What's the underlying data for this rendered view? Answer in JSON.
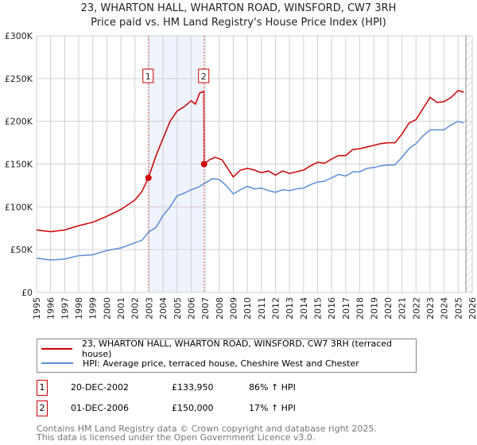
{
  "chart_data": {
    "type": "line",
    "title": "23, WHARTON HALL, WHARTON ROAD, WINSFORD, CW7 3RH",
    "subtitle": "Price paid vs. HM Land Registry's House Price Index (HPI)",
    "xlim": [
      1995,
      2026
    ],
    "ylim": [
      0,
      300000
    ],
    "x_ticks": [
      "1995",
      "1996",
      "1997",
      "1998",
      "1999",
      "2000",
      "2001",
      "2002",
      "2003",
      "2004",
      "2005",
      "2006",
      "2007",
      "2008",
      "2009",
      "2010",
      "2011",
      "2012",
      "2013",
      "2014",
      "2015",
      "2016",
      "2017",
      "2018",
      "2019",
      "2020",
      "2021",
      "2022",
      "2023",
      "2024",
      "2025",
      "2026"
    ],
    "y_ticks": [
      {
        "v": 0,
        "label": "£0"
      },
      {
        "v": 50000,
        "label": "£50K"
      },
      {
        "v": 100000,
        "label": "£100K"
      },
      {
        "v": 150000,
        "label": "£150K"
      },
      {
        "v": 200000,
        "label": "£200K"
      },
      {
        "v": 250000,
        "label": "£250K"
      },
      {
        "v": 300000,
        "label": "£300K"
      }
    ],
    "grid": true,
    "shaded_range": [
      2002.96,
      2006.92
    ],
    "future_hatch_from": 2025.55,
    "series": [
      {
        "name": "23, WHARTON HALL, WHARTON ROAD, WINSFORD, CW7 3RH (terraced house)",
        "color": "#cc0000",
        "x": [
          1995,
          1996,
          1997,
          1998,
          1999,
          2000,
          2001,
          2002,
          2002.5,
          2002.96,
          2003.5,
          2004,
          2004.5,
          2005,
          2005.5,
          2006,
          2006.3,
          2006.6,
          2006.9,
          2006.92,
          2007.3,
          2007.7,
          2008.2,
          2008.6,
          2009,
          2009.5,
          2010,
          2010.5,
          2011,
          2011.5,
          2012,
          2012.5,
          2013,
          2013.5,
          2014,
          2014.5,
          2015,
          2015.5,
          2016,
          2016.5,
          2017,
          2017.5,
          2018,
          2018.5,
          2019,
          2019.5,
          2020,
          2020.5,
          2021,
          2021.5,
          2022,
          2022.5,
          2023,
          2023.5,
          2024,
          2024.5,
          2025,
          2025.4
        ],
        "y": [
          73,
          71,
          73,
          78,
          82,
          89,
          97,
          108,
          118,
          134,
          160,
          180,
          200,
          212,
          217,
          224,
          220,
          233,
          235,
          150,
          155,
          158,
          155,
          145,
          135,
          143,
          145,
          143,
          140,
          142,
          137,
          142,
          139,
          141,
          143,
          148,
          152,
          151,
          156,
          160,
          160,
          167,
          168,
          170,
          172,
          174,
          175,
          175,
          185,
          198,
          202,
          215,
          228,
          222,
          223,
          228,
          236,
          234
        ]
      },
      {
        "name": "HPI: Average price, terraced house, Cheshire West and Chester",
        "color": "#5b8fd4",
        "x": [
          1995,
          1996,
          1997,
          1998,
          1999,
          2000,
          2001,
          2002,
          2002.5,
          2003,
          2003.5,
          2004,
          2004.5,
          2005,
          2005.5,
          2006,
          2006.5,
          2007,
          2007.5,
          2008,
          2008.5,
          2009,
          2009.5,
          2010,
          2010.5,
          2011,
          2011.5,
          2012,
          2012.5,
          2013,
          2013.5,
          2014,
          2014.5,
          2015,
          2015.5,
          2016,
          2016.5,
          2017,
          2017.5,
          2018,
          2018.5,
          2019,
          2019.5,
          2020,
          2020.5,
          2021,
          2021.5,
          2022,
          2022.5,
          2023,
          2023.5,
          2024,
          2024.5,
          2025,
          2025.4
        ],
        "y": [
          40,
          38,
          39,
          43,
          44,
          49,
          52,
          58,
          61,
          71,
          76,
          90,
          100,
          113,
          116,
          120,
          123,
          128,
          133,
          132,
          125,
          115,
          120,
          124,
          121,
          122,
          119,
          117,
          120,
          119,
          121,
          122,
          126,
          129,
          130,
          134,
          138,
          136,
          141,
          141,
          145,
          146,
          148,
          149,
          149,
          158,
          168,
          174,
          183,
          190,
          190,
          190,
          196,
          200,
          198
        ]
      }
    ],
    "y_units": "thousands GBP",
    "annotations": [
      {
        "label": "1",
        "x": 2002.96,
        "y": 133950
      },
      {
        "label": "2",
        "x": 2006.92,
        "y": 150000
      }
    ]
  },
  "legend": {
    "items": [
      {
        "label": "23, WHARTON HALL, WHARTON ROAD, WINSFORD, CW7 3RH (terraced house)",
        "color": "#cc0000"
      },
      {
        "label": "HPI: Average price, terraced house, Cheshire West and Chester",
        "color": "#5b8fd4"
      }
    ]
  },
  "transactions": [
    {
      "num": "1",
      "date": "20-DEC-2002",
      "price": "£133,950",
      "hpi": "86% ↑ HPI"
    },
    {
      "num": "2",
      "date": "01-DEC-2006",
      "price": "£150,000",
      "hpi": "17% ↑ HPI"
    }
  ],
  "footer": {
    "line1": "Contains HM Land Registry data © Crown copyright and database right 2025.",
    "line2": "This data is licensed under the Open Government Licence v3.0."
  }
}
